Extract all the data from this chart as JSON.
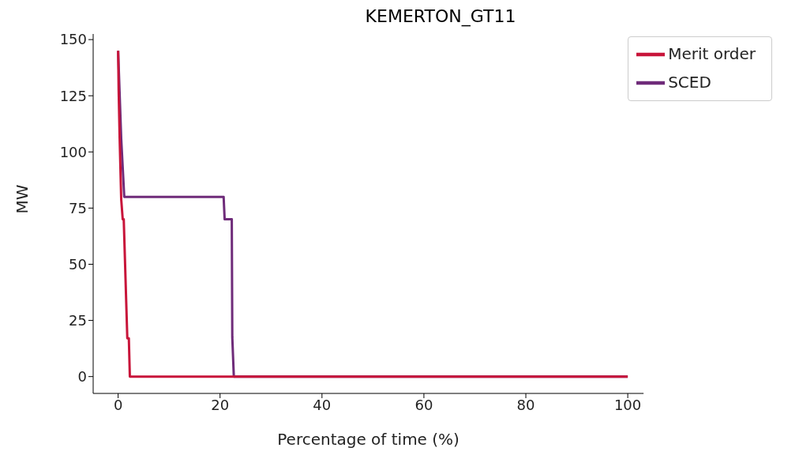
{
  "chart_data": {
    "type": "line",
    "title": "KEMERTON_GT11",
    "xlabel": "Percentage of time (%)",
    "ylabel": "MW",
    "series": [
      {
        "name": "SCED",
        "color": "#6f2c7a",
        "x": [
          0,
          0.6,
          1.2,
          20.7,
          20.9,
          22.3,
          22.4,
          22.7,
          100
        ],
        "values": [
          145,
          106,
          80,
          80,
          70,
          70,
          17.5,
          0,
          0
        ]
      },
      {
        "name": "Merit order",
        "color": "#c8153a",
        "x": [
          0,
          0.1,
          0.3,
          0.6,
          0.9,
          1.1,
          1.8,
          2.1,
          2.3,
          100
        ],
        "values": [
          145,
          127.5,
          106,
          79,
          70,
          70,
          17,
          17,
          0,
          0
        ]
      }
    ],
    "xlim": [
      -4.9,
      103.1
    ],
    "xticks": [
      0,
      20,
      40,
      60,
      80,
      100
    ],
    "ylim": [
      -7.5,
      152.5
    ],
    "yticks": [
      0,
      25,
      50,
      75,
      100,
      125,
      150
    ],
    "grid": false,
    "legend": "top right",
    "marker": "none",
    "line_style": "solid"
  }
}
